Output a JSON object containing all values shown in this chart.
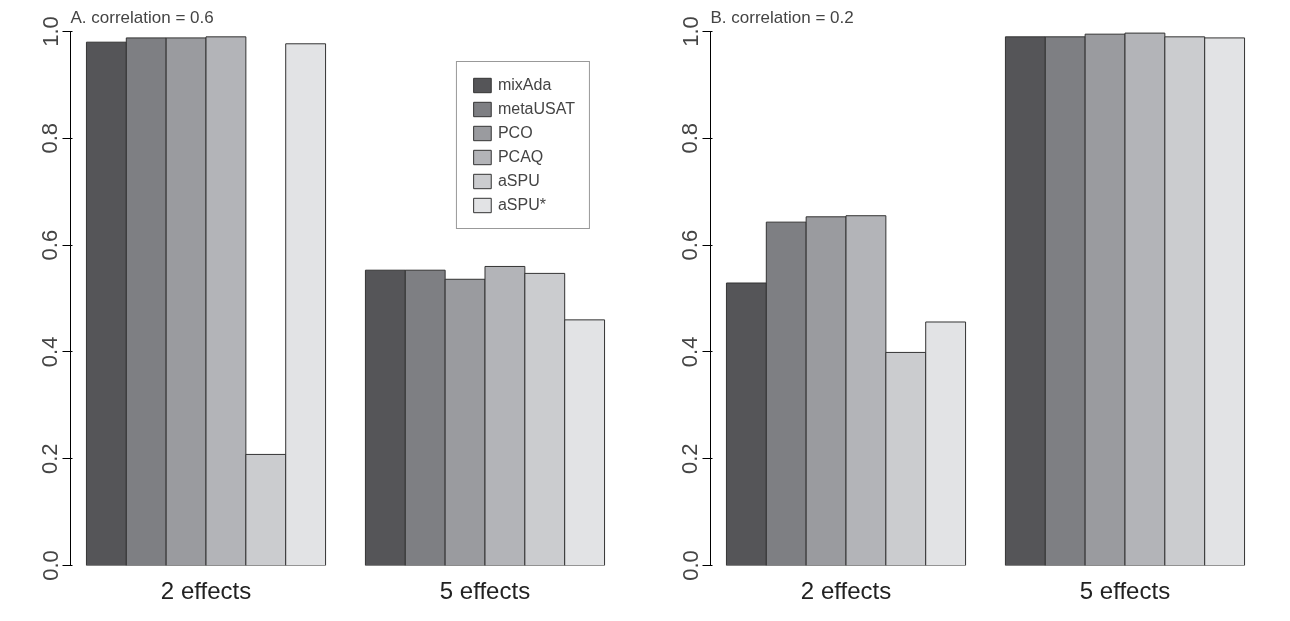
{
  "chart_data": [
    {
      "type": "bar",
      "title": "A. correlation = 0.6",
      "categories": [
        "2 effects",
        "5 effects"
      ],
      "ylim": [
        0,
        1
      ],
      "yticks": [
        {
          "value": 0,
          "label": "0.0"
        },
        {
          "value": 0.2,
          "label": "0.2"
        },
        {
          "value": 0.4,
          "label": "0.4"
        },
        {
          "value": 0.6,
          "label": "0.6"
        },
        {
          "value": 0.8,
          "label": "0.8"
        },
        {
          "value": 1,
          "label": "1.0"
        }
      ],
      "grid": false,
      "legend": "top right",
      "series": [
        {
          "name": "mixAda",
          "color": "#555558",
          "values": [
            0.98,
            0.553
          ]
        },
        {
          "name": "metaUSAT",
          "color": "#7e7f83",
          "values": [
            0.988,
            0.553
          ]
        },
        {
          "name": "PCO",
          "color": "#9a9b9f",
          "values": [
            0.988,
            0.536
          ]
        },
        {
          "name": "PCAQ",
          "color": "#b3b4b8",
          "values": [
            0.99,
            0.56
          ]
        },
        {
          "name": "aSPU",
          "color": "#cbcccf",
          "values": [
            0.208,
            0.547
          ]
        },
        {
          "name": "aSPU*",
          "color": "#e2e3e5",
          "values": [
            0.977,
            0.46
          ]
        }
      ]
    },
    {
      "type": "bar",
      "title": "B. correlation = 0.2",
      "categories": [
        "2 effects",
        "5 effects"
      ],
      "ylim": [
        0,
        1
      ],
      "yticks": [
        {
          "value": 0,
          "label": "0.0"
        },
        {
          "value": 0.2,
          "label": "0.2"
        },
        {
          "value": 0.4,
          "label": "0.4"
        },
        {
          "value": 0.6,
          "label": "0.6"
        },
        {
          "value": 0.8,
          "label": "0.8"
        },
        {
          "value": 1,
          "label": "1.0"
        }
      ],
      "grid": false,
      "series": [
        {
          "color": "#555558",
          "values": [
            0.529,
            0.99
          ]
        },
        {
          "color": "#7e7f83",
          "values": [
            0.643,
            0.99
          ]
        },
        {
          "color": "#9a9b9f",
          "values": [
            0.653,
            0.995
          ]
        },
        {
          "color": "#b3b4b8",
          "values": [
            0.655,
            0.997
          ]
        },
        {
          "color": "#cbcccf",
          "values": [
            0.399,
            0.99
          ]
        },
        {
          "color": "#e2e3e5",
          "values": [
            0.456,
            0.988
          ]
        }
      ]
    }
  ]
}
